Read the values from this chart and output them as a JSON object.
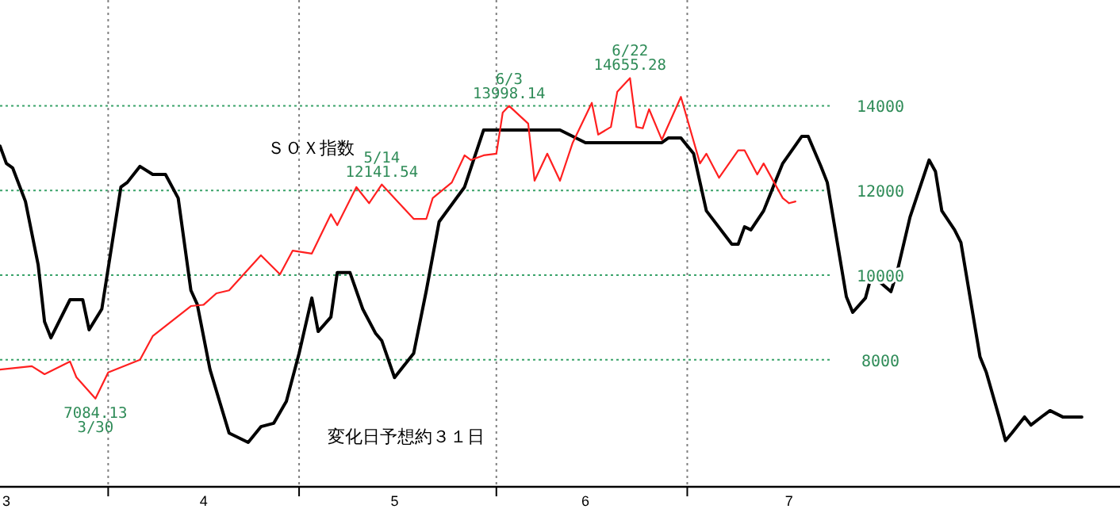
{
  "chart_data": {
    "type": "line",
    "xlim": [
      "--03-15",
      "--09-07"
    ],
    "ylim": [
      5000,
      16500
    ],
    "xticks": [
      {
        "value": "--03-16",
        "label": "3"
      },
      {
        "value": "--04-01",
        "label": null
      },
      {
        "value": "--04-16",
        "label": "4"
      },
      {
        "value": "--05-01",
        "label": null
      },
      {
        "value": "--05-16",
        "label": "5"
      },
      {
        "value": "--06-01",
        "label": null
      },
      {
        "value": "--06-15",
        "label": "6"
      },
      {
        "value": "--07-01",
        "label": null
      },
      {
        "value": "--07-17",
        "label": "7"
      }
    ],
    "yticks": [
      8000,
      10000,
      12000,
      14000
    ],
    "grid": "y",
    "ref_lines": [
      {
        "axis": "x",
        "value": "--04-01",
        "label": null,
        "color": "#808080",
        "line_style": "dotted"
      },
      {
        "axis": "x",
        "value": "--05-01",
        "label": null,
        "color": "#808080",
        "line_style": "dotted"
      },
      {
        "axis": "x",
        "value": "--06-01",
        "label": null,
        "color": "#808080",
        "line_style": "dotted"
      },
      {
        "axis": "x",
        "value": "--07-01",
        "label": null,
        "color": "#808080",
        "line_style": "dotted"
      }
    ],
    "series": [
      {
        "color": "#ff2020",
        "x": [
          "--03-15",
          "--03-20",
          "--03-22",
          "--03-26",
          "--03-27",
          "--03-30",
          "--04-01",
          "--04-06",
          "--04-08",
          "--04-14",
          "--04-16",
          "--04-18",
          "--04-20",
          "--04-25",
          "--04-28",
          "--04-30",
          "--05-03",
          "--05-06",
          "--05-07",
          "--05-10",
          "--05-12",
          "--05-14",
          "--05-19",
          "--05-21",
          "--05-22",
          "--05-25",
          "--05-27",
          "--05-28",
          "--05-30",
          "--06-01",
          "--06-02",
          "--06-03",
          "--06-06",
          "--06-07",
          "--06-09",
          "--06-11",
          "--06-13",
          "--06-16",
          "--06-17",
          "--06-19",
          "--06-20",
          "--06-22",
          "--06-23",
          "--06-24",
          "--06-25",
          "--06-27",
          "--06-30",
          "--07-03",
          "--07-04",
          "--07-06",
          "--07-09",
          "--07-10",
          "--07-12",
          "--07-13",
          "--07-16",
          "--07-17",
          "--07-18"
        ],
        "values": [
          7770,
          7850,
          7660,
          7960,
          7590,
          7084.13,
          7700,
          8000,
          8560,
          9270,
          9300,
          9570,
          9640,
          10470,
          10020,
          10580,
          10510,
          11440,
          11180,
          12080,
          11700,
          12141.54,
          11330,
          11330,
          11820,
          12190,
          12830,
          12720,
          12830,
          12870,
          13840,
          13998.14,
          13580,
          12230,
          12870,
          12230,
          13130,
          14070,
          13320,
          13500,
          14330,
          14655.28,
          13500,
          13470,
          13920,
          13200,
          14210,
          12640,
          12870,
          12300,
          12950,
          12950,
          12380,
          12640,
          11820,
          11700,
          11740
        ]
      },
      {
        "color": "#000000",
        "x": [
          "--03-15",
          "--03-16",
          "--03-17",
          "--03-19",
          "--03-21",
          "--03-22",
          "--03-23",
          "--03-25",
          "--03-26",
          "--03-28",
          "--03-29",
          "--03-31",
          "--04-03",
          "--04-04",
          "--04-06",
          "--04-08",
          "--04-10",
          "--04-12",
          "--04-14",
          "--04-15",
          "--04-17",
          "--04-20",
          "--04-23",
          "--04-25",
          "--04-27",
          "--04-29",
          "--05-01",
          "--05-03",
          "--05-04",
          "--05-06",
          "--05-07",
          "--05-09",
          "--05-11",
          "--05-13",
          "--05-14",
          "--05-16",
          "--05-19",
          "--05-21",
          "--05-23",
          "--05-27",
          "--05-30",
          "--06-11",
          "--06-13",
          "--06-15",
          "--06-27",
          "--06-28",
          "--06-30",
          "--07-02",
          "--07-04",
          "--07-08",
          "--07-09",
          "--07-10",
          "--07-11",
          "--07-13",
          "--07-15",
          "--07-16",
          "--07-19",
          "--07-20",
          "--07-22",
          "--07-23",
          "--07-26",
          "--07-27",
          "--07-29",
          "--07-30",
          "--07-31",
          "--08-02",
          "--08-03",
          "--08-05",
          "--08-06",
          "--08-08",
          "--08-09",
          "--08-10",
          "--08-12",
          "--08-13",
          "--08-16",
          "--08-17",
          "--08-19",
          "--08-20",
          "--08-21",
          "--08-23",
          "--08-24",
          "--08-26",
          "--08-27",
          "--08-29",
          "--09-01"
        ],
        "values": [
          13050,
          12640,
          12530,
          11740,
          10240,
          8900,
          8520,
          9120,
          9420,
          9420,
          8710,
          9200,
          12080,
          12190,
          12570,
          12380,
          12380,
          11820,
          9640,
          9310,
          7770,
          6270,
          6050,
          6420,
          6500,
          7020,
          8150,
          9460,
          8670,
          9010,
          10060,
          10060,
          9200,
          8630,
          8450,
          7580,
          8150,
          9640,
          11260,
          12080,
          13430,
          13430,
          13280,
          13130,
          13130,
          13240,
          13240,
          12870,
          11520,
          10730,
          10730,
          11140,
          11070,
          11520,
          12270,
          12640,
          13280,
          13280,
          12570,
          12190,
          9490,
          9120,
          9460,
          10020,
          9870,
          9610,
          10090,
          11370,
          11820,
          12720,
          12450,
          11520,
          11070,
          10770,
          8070,
          7700,
          6650,
          6090,
          6270,
          6650,
          6460,
          6690,
          6800,
          6650,
          6650
        ]
      }
    ],
    "annotations": [
      "ＳＯＸ指数",
      "変化日予想約３１日",
      {
        "text": "7084.13\n3/30",
        "x": "--03-30",
        "y": 7084.13
      },
      {
        "text": "5/14\n12141.54",
        "x": "--05-14",
        "y": 12141.54
      },
      {
        "text": "6/3\n13998.14",
        "x": "--06-03",
        "y": 13998.14
      },
      {
        "text": "6/22\n14655.28",
        "x": "--06-22",
        "y": 14655.28
      }
    ]
  }
}
